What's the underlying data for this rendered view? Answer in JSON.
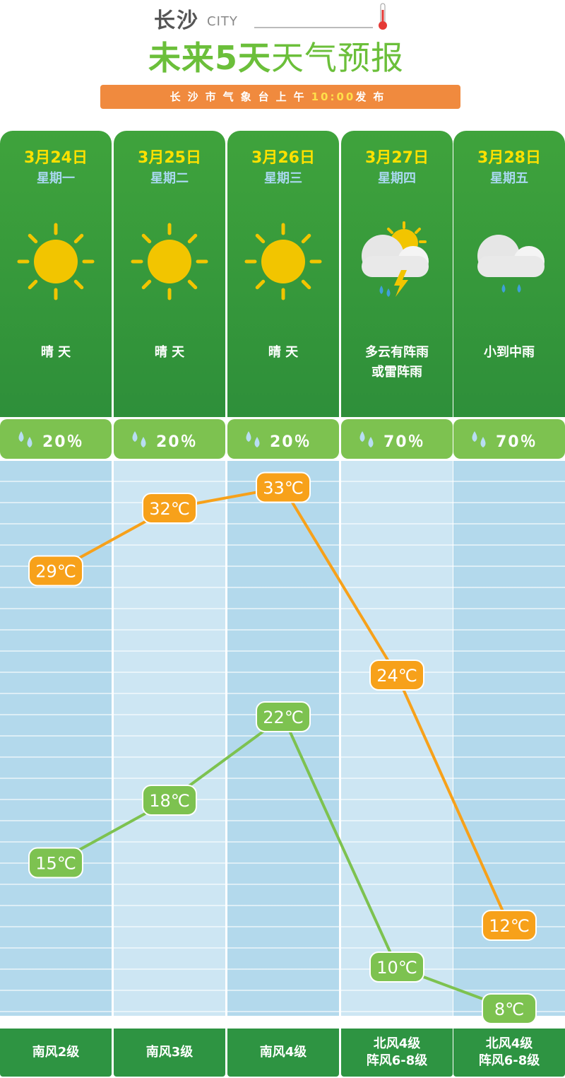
{
  "header": {
    "city": "长沙",
    "city_en": "CITY",
    "title_main": "未来5天",
    "title_sub": "天气预报",
    "banner_pre": "长沙市气象台上午",
    "banner_time": "10:00",
    "banner_post": "发布"
  },
  "colors": {
    "accent_green": "#6bbf3a",
    "card_green": "#2e8f3a",
    "high_line": "#f7a11a",
    "low_line": "#7dc250",
    "date_yellow": "#ffe100",
    "banner_orange": "#f08a3e"
  },
  "days": [
    {
      "date": "3月24日",
      "weekday": "星期一",
      "icon": "sunny-icon",
      "desc": "晴 天",
      "rain": "20％",
      "wind": "南风2级"
    },
    {
      "date": "3月25日",
      "weekday": "星期二",
      "icon": "sunny-icon",
      "desc": "晴 天",
      "rain": "20％",
      "wind": "南风3级"
    },
    {
      "date": "3月26日",
      "weekday": "星期三",
      "icon": "sunny-icon",
      "desc": "晴 天",
      "rain": "20％",
      "wind": "南风4级"
    },
    {
      "date": "3月27日",
      "weekday": "星期四",
      "icon": "thunder-shower-icon",
      "desc": "多云有阵雨\n或雷阵雨",
      "rain": "70％",
      "wind": "北风4级\n阵风6-8级"
    },
    {
      "date": "3月28日",
      "weekday": "星期五",
      "icon": "light-rain-icon",
      "desc": "小到中雨",
      "rain": "70％",
      "wind": "北风4级\n阵风6-8级"
    }
  ],
  "chart_data": {
    "type": "line",
    "categories": [
      "3月24日",
      "3月25日",
      "3月26日",
      "3月27日",
      "3月28日"
    ],
    "series": [
      {
        "values": [
          29,
          32,
          33,
          24,
          12
        ],
        "labels": [
          "29℃",
          "32℃",
          "33℃",
          "24℃",
          "12℃"
        ],
        "color": "#f7a11a"
      },
      {
        "values": [
          15,
          18,
          22,
          10,
          8
        ],
        "labels": [
          "15℃",
          "18℃",
          "22℃",
          "10℃",
          "8℃"
        ],
        "color": "#7dc250"
      }
    ]
  }
}
